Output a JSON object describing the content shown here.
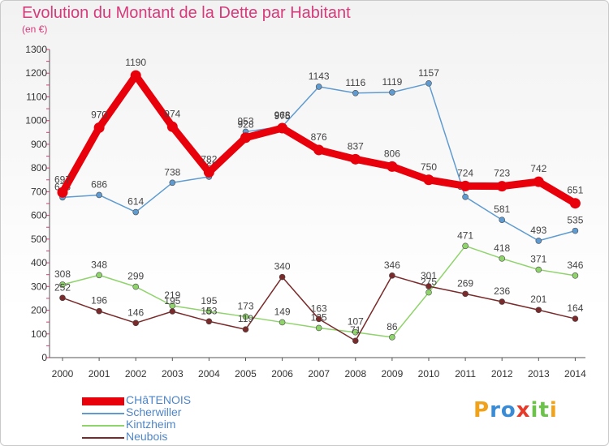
{
  "header": {
    "title": "Evolution du Montant de la Dette par Habitant",
    "subtitle": "(en €)"
  },
  "logo": {
    "text": "Proxiti"
  },
  "chart_data": {
    "type": "line",
    "title": "Evolution du Montant de la Dette par Habitant",
    "ylabel": "(en €)",
    "xlabel": "",
    "ylim": [
      0,
      1300
    ],
    "yticks": [
      0,
      100,
      200,
      300,
      400,
      500,
      600,
      700,
      800,
      900,
      1000,
      1100,
      1200,
      1300
    ],
    "x": [
      "2000",
      "2001",
      "2002",
      "2003",
      "2004",
      "2005",
      "2006",
      "2007",
      "2008",
      "2009",
      "2010",
      "2011",
      "2012",
      "2013",
      "2014"
    ],
    "grid": false,
    "legend_position": "bottom-left",
    "series": [
      {
        "name": "CHâTENOIS",
        "color": "#e8000b",
        "emphasis": true,
        "values": [
          697,
          970,
          1190,
          974,
          782,
          928,
          968,
          876,
          837,
          806,
          750,
          724,
          723,
          742,
          651
        ]
      },
      {
        "name": "Scherwiller",
        "color": "#5f9bd0",
        "emphasis": false,
        "values": [
          676,
          686,
          614,
          738,
          763,
          953,
          975,
          1143,
          1116,
          1119,
          1157,
          678,
          581,
          493,
          535
        ]
      },
      {
        "name": "Kintzheim",
        "color": "#8fd36b",
        "emphasis": false,
        "values": [
          308,
          348,
          299,
          219,
          195,
          173,
          149,
          125,
          107,
          86,
          275,
          471,
          418,
          371,
          346
        ]
      },
      {
        "name": "Neubois",
        "color": "#7a2a2a",
        "emphasis": false,
        "values": [
          252,
          196,
          146,
          195,
          153,
          119,
          340,
          163,
          71,
          346,
          301,
          269,
          236,
          201,
          164
        ]
      }
    ]
  }
}
